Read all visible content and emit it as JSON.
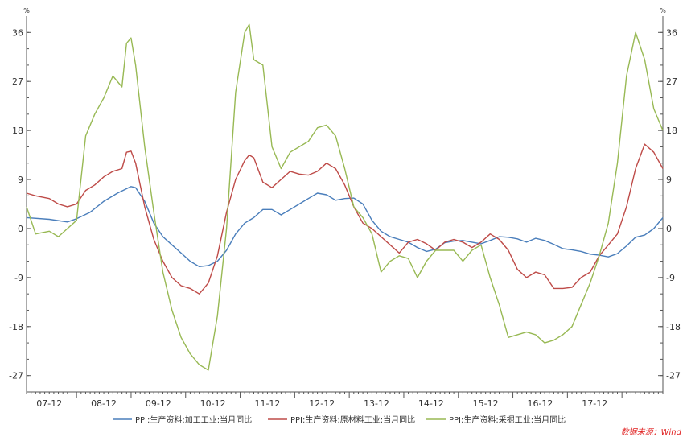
{
  "chart_data": {
    "type": "line",
    "y_unit_left": "%",
    "y_unit_right": "%",
    "ylim": [
      -30,
      39
    ],
    "yticks": [
      36,
      27,
      18,
      9,
      0,
      -9,
      -18,
      -27
    ],
    "xtick_labels": [
      "07-12",
      "08-12",
      "09-12",
      "10-12",
      "11-12",
      "12-12",
      "13-12",
      "14-12",
      "15-12",
      "16-12",
      "17-12"
    ],
    "xtick_months": [
      12,
      24,
      36,
      48,
      60,
      72,
      84,
      96,
      108,
      120,
      132
    ],
    "x_start_month": 1,
    "x_end_month": 141,
    "grid": false,
    "legend_position": "bottom",
    "colors": {
      "processing": "#4a7ebb",
      "raw_materials": "#be4b48",
      "mining": "#98b954",
      "axis": "#555555",
      "source": "#e02020"
    },
    "series": [
      {
        "name": "PPI:生产资料:加工工业:当月同比",
        "color": "#4a7ebb",
        "points": [
          [
            1,
            2
          ],
          [
            6,
            1.7
          ],
          [
            10,
            1.2
          ],
          [
            12,
            1.8
          ],
          [
            15,
            3
          ],
          [
            18,
            5
          ],
          [
            21,
            6.5
          ],
          [
            24,
            7.7
          ],
          [
            25,
            7.5
          ],
          [
            27,
            5
          ],
          [
            29,
            1
          ],
          [
            31,
            -1.5
          ],
          [
            33,
            -3
          ],
          [
            35,
            -4.5
          ],
          [
            37,
            -6
          ],
          [
            39,
            -7
          ],
          [
            41,
            -6.8
          ],
          [
            43,
            -6
          ],
          [
            45,
            -4
          ],
          [
            47,
            -1
          ],
          [
            49,
            1
          ],
          [
            51,
            2
          ],
          [
            53,
            3.5
          ],
          [
            55,
            3.5
          ],
          [
            57,
            2.5
          ],
          [
            59,
            3.5
          ],
          [
            61,
            4.5
          ],
          [
            63,
            5.5
          ],
          [
            65,
            6.5
          ],
          [
            67,
            6.2
          ],
          [
            69,
            5.2
          ],
          [
            71,
            5.5
          ],
          [
            73,
            5.6
          ],
          [
            75,
            4.5
          ],
          [
            77,
            1.5
          ],
          [
            79,
            -0.5
          ],
          [
            81,
            -1.5
          ],
          [
            83,
            -2
          ],
          [
            85,
            -2.5
          ],
          [
            87,
            -3.5
          ],
          [
            89,
            -4.2
          ],
          [
            91,
            -3.8
          ],
          [
            93,
            -2.6
          ],
          [
            95,
            -2.3
          ],
          [
            97,
            -2.2
          ],
          [
            99,
            -2.5
          ],
          [
            101,
            -2.8
          ],
          [
            103,
            -2.2
          ],
          [
            105,
            -1.5
          ],
          [
            107,
            -1.6
          ],
          [
            109,
            -1.9
          ],
          [
            111,
            -2.5
          ],
          [
            113,
            -1.8
          ],
          [
            115,
            -2.2
          ],
          [
            117,
            -2.9
          ],
          [
            119,
            -3.7
          ],
          [
            121,
            -3.9
          ],
          [
            123,
            -4.2
          ],
          [
            125,
            -4.7
          ],
          [
            127,
            -4.9
          ],
          [
            129,
            -5.2
          ],
          [
            131,
            -4.6
          ],
          [
            133,
            -3.2
          ],
          [
            135,
            -1.6
          ],
          [
            137,
            -1.2
          ],
          [
            139,
            0
          ],
          [
            141,
            2
          ],
          [
            143,
            4
          ],
          [
            145,
            5.9
          ],
          [
            147,
            6.3
          ],
          [
            149,
            4.9
          ],
          [
            151,
            5.2
          ],
          [
            153,
            5.9
          ],
          [
            155,
            6.7
          ],
          [
            157,
            7.1
          ],
          [
            159,
            5.8
          ],
          [
            161,
            4.5
          ],
          [
            163,
            3.6
          ],
          [
            165,
            4.2
          ],
          [
            167,
            4.6
          ],
          [
            169,
            3.8
          ],
          [
            171,
            3.4
          ],
          [
            173,
            2.5
          ]
        ]
      },
      {
        "name": "PPI:生产资料:原材料工业:当月同比",
        "color": "#be4b48",
        "points": [
          [
            1,
            6.5
          ],
          [
            3,
            6
          ],
          [
            6,
            5.5
          ],
          [
            8,
            4.5
          ],
          [
            10,
            4
          ],
          [
            12,
            4.5
          ],
          [
            14,
            7
          ],
          [
            16,
            8
          ],
          [
            18,
            9.5
          ],
          [
            20,
            10.5
          ],
          [
            22,
            11
          ],
          [
            23,
            14
          ],
          [
            24,
            14.2
          ],
          [
            25,
            12
          ],
          [
            27,
            4
          ],
          [
            29,
            -2
          ],
          [
            31,
            -6
          ],
          [
            33,
            -9
          ],
          [
            35,
            -10.5
          ],
          [
            37,
            -11
          ],
          [
            39,
            -12
          ],
          [
            41,
            -10
          ],
          [
            43,
            -5
          ],
          [
            45,
            3
          ],
          [
            47,
            9
          ],
          [
            49,
            12.5
          ],
          [
            50,
            13.5
          ],
          [
            51,
            13
          ],
          [
            53,
            8.5
          ],
          [
            55,
            7.5
          ],
          [
            57,
            9
          ],
          [
            59,
            10.5
          ],
          [
            61,
            10
          ],
          [
            63,
            9.8
          ],
          [
            65,
            10.5
          ],
          [
            67,
            12
          ],
          [
            69,
            11
          ],
          [
            71,
            8
          ],
          [
            73,
            4
          ],
          [
            75,
            1
          ],
          [
            77,
            0
          ],
          [
            79,
            -1.5
          ],
          [
            81,
            -3
          ],
          [
            83,
            -4.5
          ],
          [
            85,
            -2.5
          ],
          [
            87,
            -2
          ],
          [
            89,
            -2.8
          ],
          [
            91,
            -4
          ],
          [
            93,
            -2.5
          ],
          [
            95,
            -2
          ],
          [
            97,
            -2.5
          ],
          [
            99,
            -3.5
          ],
          [
            101,
            -2.5
          ],
          [
            103,
            -1
          ],
          [
            105,
            -2
          ],
          [
            107,
            -4
          ],
          [
            109,
            -7.5
          ],
          [
            111,
            -9
          ],
          [
            113,
            -8
          ],
          [
            115,
            -8.5
          ],
          [
            117,
            -11
          ],
          [
            119,
            -11
          ],
          [
            121,
            -10.8
          ],
          [
            123,
            -9
          ],
          [
            125,
            -8
          ],
          [
            127,
            -5
          ],
          [
            129,
            -3
          ],
          [
            131,
            -1
          ],
          [
            133,
            4
          ],
          [
            135,
            11
          ],
          [
            137,
            15.5
          ],
          [
            139,
            14
          ],
          [
            141,
            11
          ],
          [
            143,
            9.5
          ],
          [
            145,
            11.5
          ],
          [
            147,
            12
          ],
          [
            149,
            10.5
          ],
          [
            151,
            8.5
          ],
          [
            153,
            6.5
          ],
          [
            155,
            5
          ],
          [
            157,
            6.5
          ],
          [
            159,
            8
          ],
          [
            161,
            9
          ],
          [
            163,
            8
          ],
          [
            165,
            7
          ],
          [
            167,
            6.5
          ],
          [
            169,
            5
          ],
          [
            171,
            5
          ],
          [
            173,
            6.5
          ]
        ]
      },
      {
        "name": "PPI:生产资料:采掘工业:当月同比",
        "color": "#98b954",
        "points": [
          [
            1,
            4
          ],
          [
            3,
            -1
          ],
          [
            6,
            -0.5
          ],
          [
            8,
            -1.5
          ],
          [
            10,
            0
          ],
          [
            12,
            1.5
          ],
          [
            14,
            17
          ],
          [
            16,
            21
          ],
          [
            18,
            24
          ],
          [
            20,
            28
          ],
          [
            22,
            26
          ],
          [
            23,
            34
          ],
          [
            24,
            35
          ],
          [
            25,
            30
          ],
          [
            27,
            15
          ],
          [
            29,
            3
          ],
          [
            31,
            -8
          ],
          [
            33,
            -15
          ],
          [
            35,
            -20
          ],
          [
            37,
            -23
          ],
          [
            39,
            -25
          ],
          [
            41,
            -26
          ],
          [
            43,
            -16
          ],
          [
            45,
            0
          ],
          [
            47,
            25
          ],
          [
            49,
            36
          ],
          [
            50,
            37.5
          ],
          [
            51,
            31
          ],
          [
            53,
            30
          ],
          [
            55,
            15
          ],
          [
            57,
            11
          ],
          [
            59,
            14
          ],
          [
            61,
            15
          ],
          [
            63,
            16
          ],
          [
            65,
            18.5
          ],
          [
            67,
            19
          ],
          [
            69,
            17
          ],
          [
            71,
            11
          ],
          [
            73,
            4
          ],
          [
            75,
            2
          ],
          [
            77,
            -1
          ],
          [
            79,
            -8
          ],
          [
            81,
            -6
          ],
          [
            83,
            -5
          ],
          [
            85,
            -5.5
          ],
          [
            87,
            -9
          ],
          [
            89,
            -6
          ],
          [
            91,
            -4
          ],
          [
            93,
            -4
          ],
          [
            95,
            -4
          ],
          [
            97,
            -6
          ],
          [
            99,
            -4
          ],
          [
            101,
            -3
          ],
          [
            103,
            -9
          ],
          [
            105,
            -14
          ],
          [
            107,
            -20
          ],
          [
            109,
            -19.5
          ],
          [
            111,
            -19
          ],
          [
            113,
            -19.5
          ],
          [
            115,
            -21
          ],
          [
            117,
            -20.5
          ],
          [
            119,
            -19.5
          ],
          [
            121,
            -18
          ],
          [
            123,
            -14
          ],
          [
            125,
            -10
          ],
          [
            127,
            -5
          ],
          [
            129,
            1
          ],
          [
            131,
            12
          ],
          [
            133,
            28
          ],
          [
            135,
            36
          ],
          [
            137,
            31
          ],
          [
            139,
            22
          ],
          [
            141,
            18
          ],
          [
            143,
            17
          ],
          [
            145,
            13
          ],
          [
            147,
            10
          ],
          [
            149,
            8
          ],
          [
            151,
            6
          ],
          [
            153,
            5
          ],
          [
            155,
            6
          ],
          [
            157,
            10
          ],
          [
            159,
            13
          ],
          [
            161,
            12
          ],
          [
            163,
            12
          ]
        ]
      }
    ],
    "source_label": "数据来源：Wind"
  }
}
